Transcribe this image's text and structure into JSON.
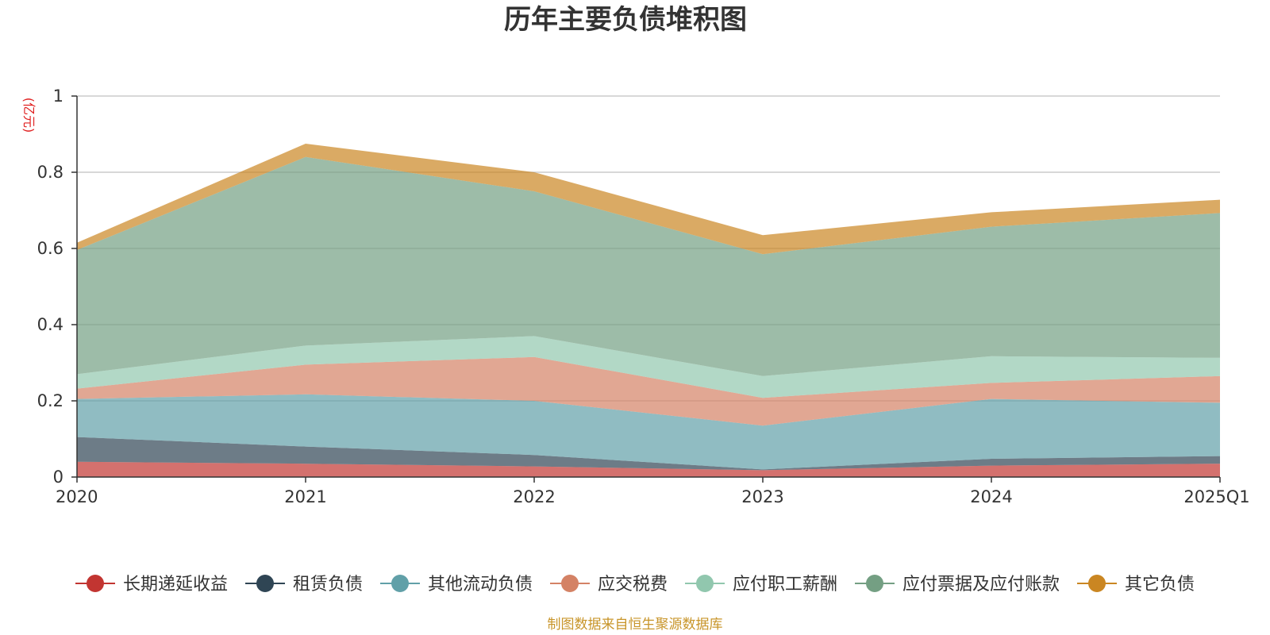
{
  "chart_data": {
    "type": "area",
    "title": "历年主要负债堆积图",
    "unit": "(亿元)",
    "source": "制图数据来自恒生聚源数据库",
    "categories": [
      "2020",
      "2021",
      "2022",
      "2023",
      "2024",
      "2025Q1"
    ],
    "ylim": [
      0,
      1
    ],
    "yticks": [
      "0",
      "0.2",
      "0.4",
      "0.6",
      "0.8",
      "1"
    ],
    "grid": true,
    "legend_position": "bottom",
    "stacked": true,
    "series": [
      {
        "name": "长期递延收益",
        "color": "#c23531",
        "values": [
          0.04,
          0.035,
          0.028,
          0.018,
          0.03,
          0.035
        ]
      },
      {
        "name": "租赁负债",
        "color": "#2f4554",
        "values": [
          0.065,
          0.045,
          0.03,
          0.002,
          0.018,
          0.02
        ]
      },
      {
        "name": "其他流动负债",
        "color": "#61a0a8",
        "values": [
          0.1,
          0.137,
          0.142,
          0.115,
          0.157,
          0.14
        ]
      },
      {
        "name": "应交税费",
        "color": "#d48265",
        "values": [
          0.027,
          0.078,
          0.115,
          0.073,
          0.042,
          0.07
        ]
      },
      {
        "name": "应付职工薪酬",
        "color": "#91c7ae",
        "values": [
          0.038,
          0.05,
          0.055,
          0.057,
          0.07,
          0.048
        ]
      },
      {
        "name": "应付票据及应付账款",
        "color": "#749f83",
        "values": [
          0.326,
          0.495,
          0.38,
          0.32,
          0.34,
          0.38
        ]
      },
      {
        "name": "其它负债",
        "color": "#ca8622",
        "values": [
          0.019,
          0.035,
          0.05,
          0.05,
          0.038,
          0.035
        ]
      }
    ]
  }
}
